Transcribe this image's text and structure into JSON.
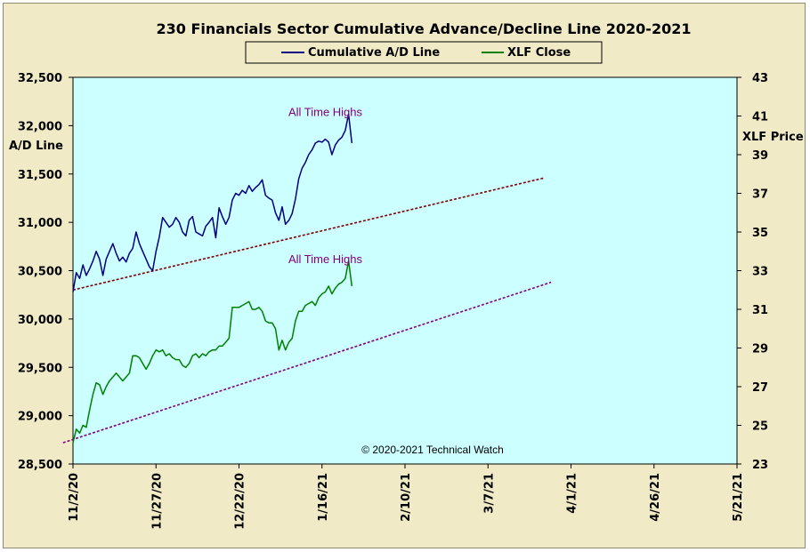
{
  "chart_data": {
    "type": "line",
    "title": "230 Financials  Sector Cumulative  Advance/Decline  Line 2020-2021",
    "ylabel": "A/D Line",
    "y2label": "XLF Price",
    "ylim": [
      28500,
      32500
    ],
    "y2lim": [
      23,
      43
    ],
    "yticks": [
      "28,500",
      "29,000",
      "29,500",
      "30,000",
      "30,500",
      "31,000",
      "31,500",
      "32,000",
      "32,500"
    ],
    "y2ticks": [
      "23",
      "25",
      "27",
      "29",
      "31",
      "33",
      "35",
      "37",
      "39",
      "41",
      "43"
    ],
    "xticks": [
      "11/2/20",
      "11/27/20",
      "12/22/20",
      "1/16/21",
      "2/10/21",
      "3/7/21",
      "4/1/21",
      "4/26/21",
      "5/21/21"
    ],
    "legend_position": "top-center",
    "background": "#ccffff",
    "series": [
      {
        "name": "Cumulative A/D Line",
        "axis": "left",
        "color": "#000080",
        "points": [
          [
            0,
            30280
          ],
          [
            1,
            30480
          ],
          [
            2,
            30420
          ],
          [
            3,
            30560
          ],
          [
            4,
            30450
          ],
          [
            5,
            30520
          ],
          [
            6,
            30600
          ],
          [
            7,
            30700
          ],
          [
            8,
            30620
          ],
          [
            9,
            30450
          ],
          [
            10,
            30620
          ],
          [
            11,
            30700
          ],
          [
            12,
            30780
          ],
          [
            13,
            30680
          ],
          [
            14,
            30600
          ],
          [
            15,
            30640
          ],
          [
            16,
            30590
          ],
          [
            17,
            30680
          ],
          [
            18,
            30730
          ],
          [
            19,
            30900
          ],
          [
            20,
            30780
          ],
          [
            21,
            30700
          ],
          [
            22,
            30620
          ],
          [
            23,
            30540
          ],
          [
            24,
            30500
          ],
          [
            25,
            30700
          ],
          [
            26,
            30850
          ],
          [
            27,
            31050
          ],
          [
            28,
            31000
          ],
          [
            29,
            30950
          ],
          [
            30,
            30980
          ],
          [
            31,
            31050
          ],
          [
            32,
            31000
          ],
          [
            33,
            30900
          ],
          [
            34,
            30860
          ],
          [
            35,
            31020
          ],
          [
            36,
            31060
          ],
          [
            37,
            30900
          ],
          [
            38,
            30880
          ],
          [
            39,
            30860
          ],
          [
            40,
            30960
          ],
          [
            41,
            31000
          ],
          [
            42,
            31050
          ],
          [
            43,
            30840
          ],
          [
            44,
            31150
          ],
          [
            45,
            31060
          ],
          [
            46,
            30980
          ],
          [
            47,
            31050
          ],
          [
            48,
            31230
          ],
          [
            49,
            31300
          ],
          [
            50,
            31280
          ],
          [
            51,
            31330
          ],
          [
            52,
            31300
          ],
          [
            53,
            31380
          ],
          [
            54,
            31320
          ],
          [
            55,
            31360
          ],
          [
            56,
            31390
          ],
          [
            57,
            31440
          ],
          [
            58,
            31280
          ],
          [
            59,
            31250
          ],
          [
            60,
            31230
          ],
          [
            61,
            31100
          ],
          [
            62,
            31020
          ],
          [
            63,
            31160
          ],
          [
            64,
            30980
          ],
          [
            65,
            31020
          ],
          [
            66,
            31090
          ],
          [
            67,
            31240
          ],
          [
            68,
            31450
          ],
          [
            69,
            31560
          ],
          [
            70,
            31620
          ],
          [
            71,
            31700
          ],
          [
            72,
            31750
          ],
          [
            73,
            31820
          ],
          [
            74,
            31840
          ],
          [
            75,
            31830
          ],
          [
            76,
            31860
          ],
          [
            77,
            31830
          ],
          [
            78,
            31700
          ],
          [
            79,
            31800
          ],
          [
            80,
            31850
          ],
          [
            81,
            31880
          ],
          [
            82,
            31950
          ],
          [
            83,
            32120
          ],
          [
            84,
            31820
          ]
        ]
      },
      {
        "name": "XLF Close",
        "axis": "right",
        "color": "#008000",
        "points": [
          [
            0,
            24.1
          ],
          [
            1,
            24.8
          ],
          [
            2,
            24.6
          ],
          [
            3,
            25.0
          ],
          [
            4,
            24.9
          ],
          [
            5,
            25.8
          ],
          [
            6,
            26.6
          ],
          [
            7,
            27.2
          ],
          [
            8,
            27.1
          ],
          [
            9,
            26.6
          ],
          [
            10,
            27.0
          ],
          [
            11,
            27.3
          ],
          [
            12,
            27.5
          ],
          [
            13,
            27.7
          ],
          [
            14,
            27.5
          ],
          [
            15,
            27.3
          ],
          [
            16,
            27.5
          ],
          [
            17,
            27.7
          ],
          [
            18,
            28.6
          ],
          [
            19,
            28.6
          ],
          [
            20,
            28.5
          ],
          [
            21,
            28.2
          ],
          [
            22,
            27.9
          ],
          [
            23,
            28.2
          ],
          [
            24,
            28.6
          ],
          [
            25,
            28.9
          ],
          [
            26,
            28.8
          ],
          [
            27,
            28.9
          ],
          [
            28,
            28.6
          ],
          [
            29,
            28.7
          ],
          [
            30,
            28.5
          ],
          [
            31,
            28.4
          ],
          [
            32,
            28.4
          ],
          [
            33,
            28.1
          ],
          [
            34,
            28.0
          ],
          [
            35,
            28.2
          ],
          [
            36,
            28.6
          ],
          [
            37,
            28.7
          ],
          [
            38,
            28.5
          ],
          [
            39,
            28.7
          ],
          [
            40,
            28.6
          ],
          [
            41,
            28.8
          ],
          [
            42,
            28.9
          ],
          [
            43,
            28.9
          ],
          [
            44,
            29.1
          ],
          [
            45,
            29.1
          ],
          [
            46,
            29.3
          ],
          [
            47,
            29.5
          ],
          [
            48,
            31.1
          ],
          [
            49,
            31.1
          ],
          [
            50,
            31.1
          ],
          [
            51,
            31.2
          ],
          [
            52,
            31.3
          ],
          [
            53,
            31.4
          ],
          [
            54,
            31.0
          ],
          [
            55,
            31.0
          ],
          [
            56,
            31.1
          ],
          [
            57,
            30.9
          ],
          [
            58,
            30.4
          ],
          [
            59,
            30.3
          ],
          [
            60,
            30.3
          ],
          [
            61,
            30.0
          ],
          [
            62,
            28.9
          ],
          [
            63,
            29.4
          ],
          [
            64,
            28.9
          ],
          [
            65,
            29.3
          ],
          [
            66,
            29.5
          ],
          [
            67,
            30.4
          ],
          [
            68,
            30.9
          ],
          [
            69,
            30.9
          ],
          [
            70,
            31.2
          ],
          [
            71,
            31.3
          ],
          [
            72,
            31.4
          ],
          [
            73,
            31.2
          ],
          [
            74,
            31.6
          ],
          [
            75,
            31.8
          ],
          [
            76,
            31.9
          ],
          [
            77,
            32.2
          ],
          [
            78,
            31.8
          ],
          [
            79,
            32.1
          ],
          [
            80,
            32.3
          ],
          [
            81,
            32.4
          ],
          [
            82,
            32.6
          ],
          [
            83,
            33.5
          ],
          [
            84,
            32.2
          ]
        ]
      }
    ],
    "trendlines": [
      {
        "axis": "left",
        "color": "#800000",
        "from": [
          0,
          30300
        ],
        "to": [
          142,
          31460
        ]
      },
      {
        "axis": "right",
        "color": "#800080",
        "from": [
          -3,
          24.1
        ],
        "to": [
          144,
          32.4
        ]
      }
    ],
    "annotations": [
      {
        "text": "All Time Highs",
        "x": 76,
        "y": 32100,
        "axis": "left"
      },
      {
        "text": "All Time Highs",
        "x": 76,
        "y": 33.4,
        "axis": "right"
      }
    ],
    "copyright": "© 2020-2021  Technical Watch"
  }
}
